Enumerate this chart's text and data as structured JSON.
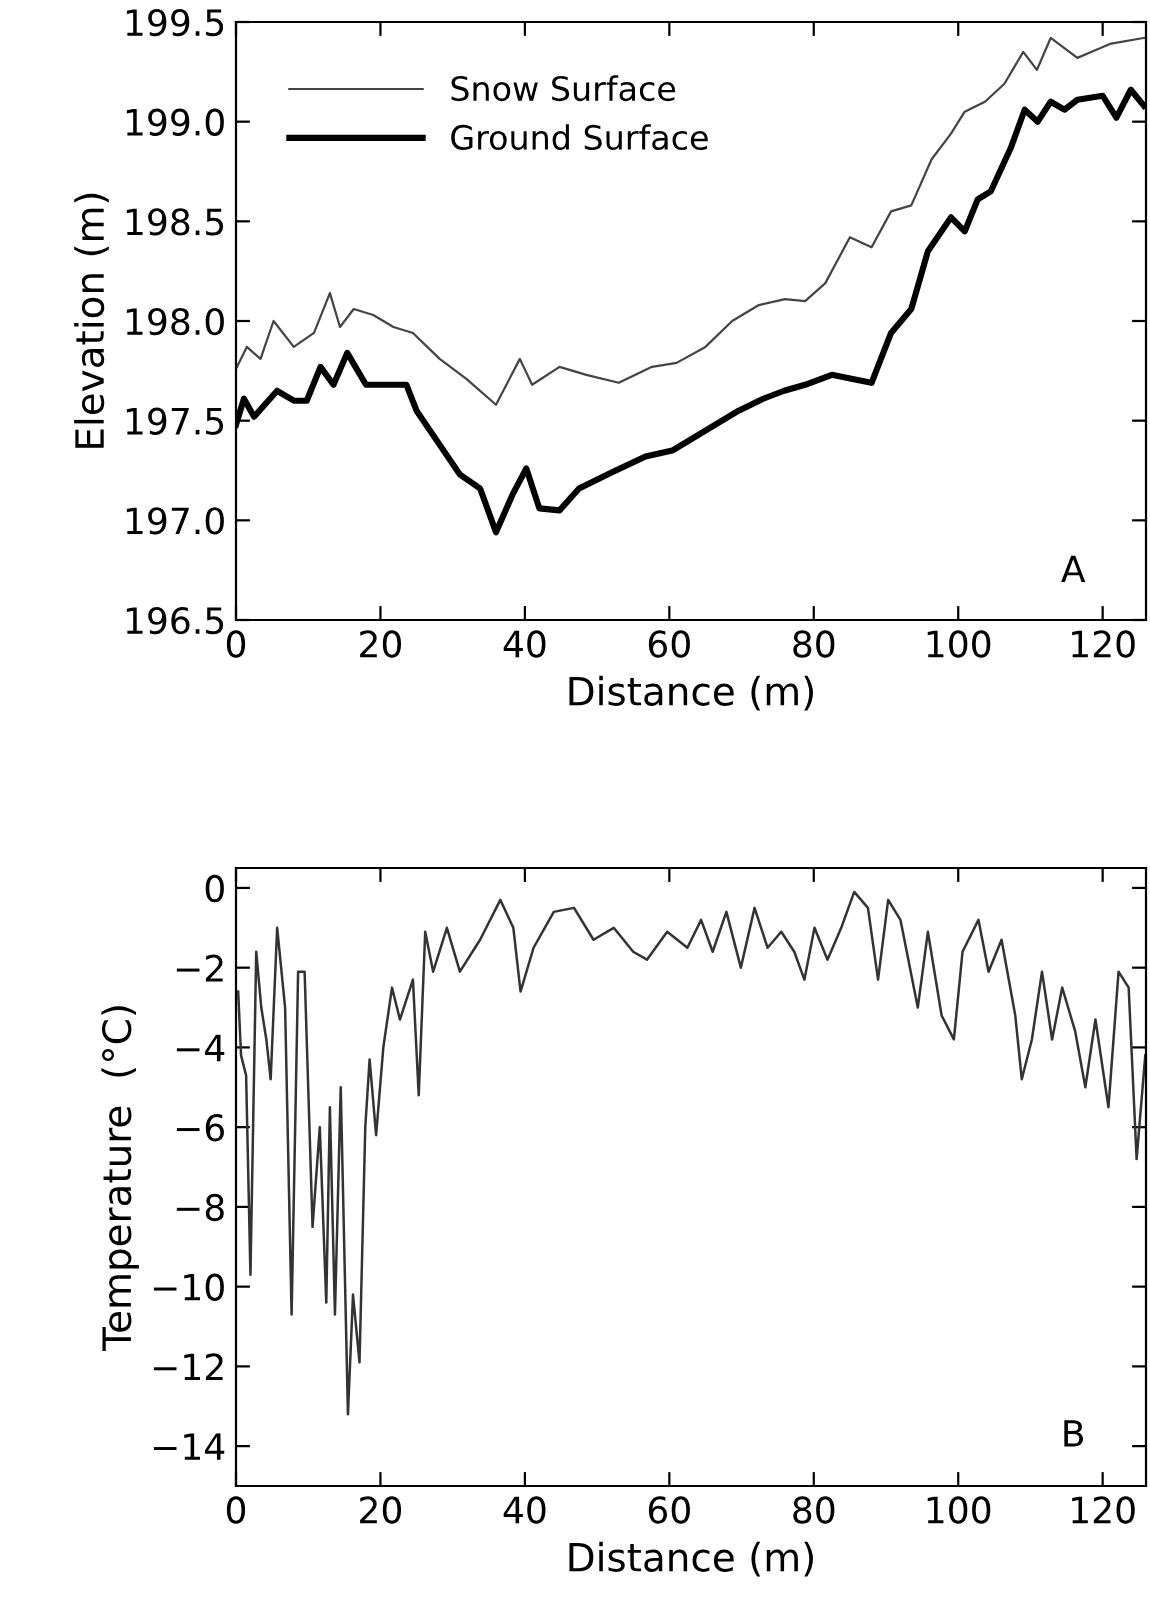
{
  "chart_data": [
    {
      "type": "line",
      "xlabel": "Distance (m)",
      "ylabel": "Elevation (m)",
      "xlim": [
        0,
        126
      ],
      "xticks": [
        0,
        20,
        40,
        60,
        80,
        100,
        120
      ],
      "ylim": [
        196.5,
        199.5
      ],
      "yticks": [
        {
          "value": 196.5,
          "label": "196.5"
        },
        {
          "value": 197.0,
          "label": "197.0"
        },
        {
          "value": 197.5,
          "label": "197.5"
        },
        {
          "value": 198.0,
          "label": "198.0"
        },
        {
          "value": 198.5,
          "label": "198.5"
        },
        {
          "value": 199.0,
          "label": "199.0"
        },
        {
          "value": 199.5,
          "label": "199.5"
        }
      ],
      "grid": false,
      "legend": "top left",
      "annotations": [
        "A"
      ],
      "series": [
        {
          "name": "Snow Surface",
          "color": "#444444",
          "x": [
            0,
            1.5,
            3.4,
            5.2,
            8,
            10.8,
            13,
            14.4,
            16.3,
            19,
            21.8,
            24.5,
            28.2,
            31.9,
            36,
            39.3,
            41,
            44.8,
            48.5,
            53,
            57.6,
            61,
            65,
            68.7,
            72.4,
            76,
            78.8,
            81.6,
            85,
            88,
            90.7,
            93.5,
            96.3,
            99,
            100.9,
            103.7,
            106.4,
            109,
            110.9,
            112.8,
            116.5,
            118.4,
            121,
            125.7
          ],
          "values": [
            197.76,
            197.87,
            197.81,
            198.0,
            197.87,
            197.94,
            198.14,
            197.97,
            198.06,
            198.03,
            197.97,
            197.94,
            197.81,
            197.71,
            197.58,
            197.81,
            197.68,
            197.77,
            197.73,
            197.69,
            197.77,
            197.79,
            197.87,
            198.0,
            198.08,
            198.11,
            198.1,
            198.19,
            198.42,
            198.37,
            198.55,
            198.58,
            198.81,
            198.94,
            199.05,
            199.1,
            199.19,
            199.35,
            199.26,
            199.42,
            199.32,
            199.35,
            199.39,
            199.42
          ]
        },
        {
          "name": "Ground Surface",
          "color": "#000000",
          "x": [
            0,
            1.1,
            2.5,
            5.7,
            8,
            9.8,
            11.7,
            13.5,
            15.4,
            18,
            20.8,
            23.6,
            25,
            28,
            31,
            33.8,
            36,
            38.3,
            40.2,
            42,
            44.8,
            47.5,
            52,
            56.7,
            60.4,
            65,
            69.6,
            73,
            75.9,
            78.8,
            82.5,
            85.2,
            88,
            90.7,
            93.5,
            95.8,
            99,
            100.9,
            102.7,
            104.5,
            107.3,
            109.2,
            111,
            112.8,
            114.7,
            116.5,
            120,
            121.9,
            123.9,
            125.7
          ],
          "values": [
            197.48,
            197.61,
            197.52,
            197.65,
            197.6,
            197.6,
            197.77,
            197.68,
            197.84,
            197.68,
            197.68,
            197.68,
            197.55,
            197.39,
            197.23,
            197.16,
            196.94,
            197.13,
            197.26,
            197.06,
            197.05,
            197.16,
            197.24,
            197.32,
            197.35,
            197.45,
            197.55,
            197.61,
            197.65,
            197.68,
            197.73,
            197.71,
            197.69,
            197.94,
            198.06,
            198.35,
            198.52,
            198.45,
            198.61,
            198.65,
            198.87,
            199.06,
            199.0,
            199.1,
            199.06,
            199.11,
            199.13,
            199.02,
            199.16,
            199.08
          ]
        }
      ]
    },
    {
      "type": "line",
      "xlabel": "Distance (m)",
      "ylabel": "Temperature  (°C)",
      "xlim": [
        0,
        126
      ],
      "xticks": [
        0,
        20,
        40,
        60,
        80,
        100,
        120
      ],
      "ylim": [
        -15,
        0.5
      ],
      "yticks": [
        {
          "value": -14,
          "label": "−14"
        },
        {
          "value": -12,
          "label": "−12"
        },
        {
          "value": -10,
          "label": "−10"
        },
        {
          "value": -8,
          "label": "−8"
        },
        {
          "value": -6,
          "label": "−6"
        },
        {
          "value": -4,
          "label": "−4"
        },
        {
          "value": -2,
          "label": "−2"
        },
        0
      ],
      "grid": false,
      "legend": false,
      "annotations": [
        "B"
      ],
      "series": [
        {
          "color": "#333333",
          "x": [
            0.3,
            0.7,
            1.4,
            2,
            2.8,
            3.5,
            4.2,
            4.8,
            5.7,
            6.8,
            7.7,
            8.6,
            9.5,
            10.6,
            11.6,
            12.5,
            13,
            13.7,
            14.5,
            15.5,
            16.2,
            17.1,
            17.9,
            18.5,
            19.4,
            20.4,
            21.6,
            22.7,
            24.5,
            25.3,
            26.2,
            27.3,
            29.2,
            31,
            33.8,
            36.6,
            38.4,
            39.4,
            41.2,
            44,
            46.8,
            49.5,
            52.3,
            55,
            56.9,
            59.7,
            62.5,
            64.4,
            66,
            67.9,
            69.9,
            71.8,
            73.6,
            75.5,
            77.3,
            78.7,
            80.1,
            81.9,
            83.8,
            85.6,
            87.5,
            88.9,
            90.3,
            92,
            94.4,
            95.8,
            97.7,
            99.4,
            100.6,
            102.8,
            104.2,
            106,
            107.9,
            108.8,
            110.2,
            111.6,
            113,
            114.4,
            116.2,
            117.6,
            119,
            120.8,
            122.2,
            123.6,
            124.7,
            125.9
          ],
          "values": [
            -2.6,
            -4.2,
            -4.7,
            -9.7,
            -1.6,
            -3.0,
            -3.8,
            -4.8,
            -1.0,
            -3.0,
            -10.7,
            -2.1,
            -2.1,
            -8.5,
            -6.0,
            -10.4,
            -5.5,
            -10.7,
            -5.0,
            -13.2,
            -10.2,
            -11.9,
            -6.0,
            -4.3,
            -6.2,
            -4.0,
            -2.5,
            -3.3,
            -2.3,
            -5.2,
            -1.1,
            -2.1,
            -1.0,
            -2.1,
            -1.3,
            -0.3,
            -1.0,
            -2.6,
            -1.5,
            -0.6,
            -0.5,
            -1.3,
            -1.0,
            -1.6,
            -1.8,
            -1.1,
            -1.5,
            -0.8,
            -1.6,
            -0.6,
            -2.0,
            -0.5,
            -1.5,
            -1.1,
            -1.6,
            -2.3,
            -1.0,
            -1.8,
            -1.0,
            -0.1,
            -0.5,
            -2.3,
            -0.3,
            -0.8,
            -3.0,
            -1.1,
            -3.2,
            -3.8,
            -1.6,
            -0.8,
            -2.1,
            -1.3,
            -3.2,
            -4.8,
            -3.8,
            -2.1,
            -3.8,
            -2.5,
            -3.6,
            -5.0,
            -3.3,
            -5.5,
            -2.1,
            -2.5,
            -6.8,
            -4.2
          ]
        }
      ]
    }
  ]
}
